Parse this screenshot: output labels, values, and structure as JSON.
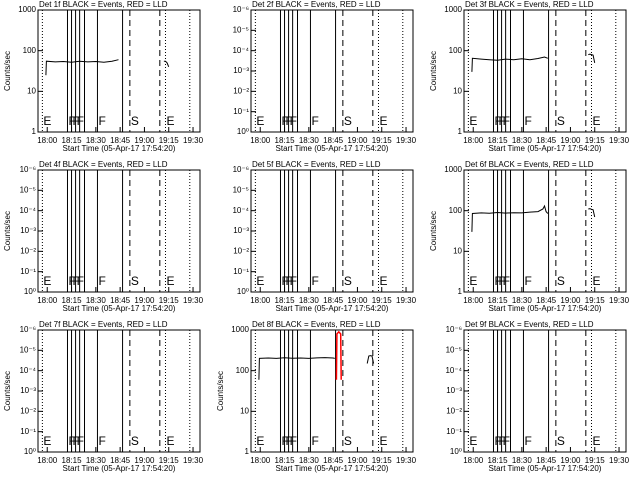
{
  "x_axis": {
    "label": "Start Time (05-Apr-17 17:54:20)",
    "xlim": [
      -5.7,
      94.3
    ],
    "xticks": [
      {
        "value": 0,
        "label": "18:00"
      },
      {
        "value": 15,
        "label": "18:15"
      },
      {
        "value": 30,
        "label": "18:30"
      },
      {
        "value": 45,
        "label": "18:45"
      },
      {
        "value": 60,
        "label": "19:00"
      },
      {
        "value": 75,
        "label": "19:15"
      },
      {
        "value": 90,
        "label": "19:30"
      }
    ]
  },
  "events": [
    {
      "time": -3,
      "label": "E",
      "style": "dotted"
    },
    {
      "time": 12.5,
      "label": "F",
      "style": "solid"
    },
    {
      "time": 15,
      "label": "F",
      "style": "solid"
    },
    {
      "time": 17.5,
      "label": "F",
      "style": "solid"
    },
    {
      "time": 20,
      "style": "solid"
    },
    {
      "time": 23,
      "style": "solid"
    },
    {
      "time": 31,
      "label": "F",
      "style": "solid"
    },
    {
      "time": 46.5,
      "style": "solid"
    },
    {
      "time": 51,
      "label": "S",
      "style": "dashed"
    },
    {
      "time": 69.5,
      "style": "dashed"
    },
    {
      "time": 73,
      "label": "E",
      "style": "dotted"
    },
    {
      "time": 88,
      "style": "dotted"
    }
  ],
  "chart_data": [
    {
      "type": "line",
      "title": "Det 1f BLACK = Events, RED = LLD",
      "ylabel": "Counts/sec",
      "log_y": true,
      "ylim": [
        1,
        1000
      ],
      "yticks": [
        1,
        10,
        100,
        1000
      ],
      "series": [
        {
          "name": "Events",
          "color": "#000000",
          "x": [
            -0.8,
            -0.5,
            5,
            10,
            15,
            20,
            25,
            30,
            35,
            40,
            44,
            45,
            72,
            73,
            74,
            75
          ],
          "values": [
            25,
            55,
            53,
            54,
            52,
            55,
            53,
            54,
            52,
            55,
            60,
            null,
            55,
            55,
            50,
            40
          ]
        }
      ]
    },
    {
      "type": "line",
      "title": "Det 2f BLACK = Events, RED = LLD",
      "log_y": true,
      "ylim": [
        1,
        1e-06
      ],
      "yticks": [
        {
          "value": 1,
          "label": "10⁰"
        },
        {
          "value": 0.1,
          "label": "10⁻¹"
        },
        {
          "value": 0.01,
          "label": "10⁻²"
        },
        {
          "value": 0.001,
          "label": "10⁻³"
        },
        {
          "value": 0.0001,
          "label": "10⁻⁴"
        },
        {
          "value": 1e-05,
          "label": "10⁻⁵"
        },
        {
          "value": 1e-06,
          "label": "10⁻⁶"
        }
      ],
      "series": []
    },
    {
      "type": "line",
      "title": "Det 3f BLACK = Events, RED = LLD",
      "ylabel": "Counts/sec",
      "log_y": true,
      "ylim": [
        1,
        1000
      ],
      "yticks": [
        1,
        10,
        100,
        1000
      ],
      "series": [
        {
          "name": "Events",
          "color": "#000000",
          "x": [
            -0.8,
            -0.5,
            5,
            10,
            15,
            20,
            25,
            30,
            35,
            40,
            44,
            46,
            47,
            71,
            72,
            73,
            74,
            75
          ],
          "values": [
            30,
            65,
            62,
            60,
            58,
            62,
            60,
            63,
            60,
            64,
            70,
            65,
            null,
            80,
            82,
            80,
            78,
            50
          ]
        }
      ]
    },
    {
      "type": "line",
      "title": "Det 4f BLACK = Events, RED = LLD",
      "ylabel": "Counts/sec",
      "log_y": true,
      "ylim": [
        1,
        1e-06
      ],
      "yticks": [
        {
          "value": 1,
          "label": "10⁰"
        },
        {
          "value": 0.1,
          "label": "10⁻¹"
        },
        {
          "value": 0.01,
          "label": "10⁻²"
        },
        {
          "value": 0.001,
          "label": "10⁻³"
        },
        {
          "value": 0.0001,
          "label": "10⁻⁴"
        },
        {
          "value": 1e-05,
          "label": "10⁻⁵"
        },
        {
          "value": 1e-06,
          "label": "10⁻⁶"
        }
      ],
      "series": []
    },
    {
      "type": "line",
      "title": "Det 5f BLACK = Events, RED = LLD",
      "log_y": true,
      "ylim": [
        1,
        1e-06
      ],
      "yticks": [
        {
          "value": 1,
          "label": "10⁰"
        },
        {
          "value": 0.1,
          "label": "10⁻¹"
        },
        {
          "value": 0.01,
          "label": "10⁻²"
        },
        {
          "value": 0.001,
          "label": "10⁻³"
        },
        {
          "value": 0.0001,
          "label": "10⁻⁴"
        },
        {
          "value": 1e-05,
          "label": "10⁻⁵"
        },
        {
          "value": 1e-06,
          "label": "10⁻⁶"
        }
      ],
      "series": []
    },
    {
      "type": "line",
      "title": "Det 6f BLACK = Events, RED = LLD",
      "ylabel": "Counts/sec",
      "log_y": true,
      "ylim": [
        1,
        1000
      ],
      "yticks": [
        1,
        10,
        100,
        1000
      ],
      "series": [
        {
          "name": "Events",
          "color": "#000000",
          "x": [
            -0.8,
            -0.5,
            5,
            10,
            15,
            20,
            25,
            30,
            35,
            40,
            43,
            44,
            45,
            46,
            47,
            71,
            72,
            73,
            74,
            75
          ],
          "values": [
            30,
            85,
            88,
            86,
            90,
            87,
            89,
            88,
            92,
            95,
            110,
            130,
            95,
            85,
            null,
            110,
            112,
            108,
            105,
            70
          ]
        }
      ]
    },
    {
      "type": "line",
      "title": "Det 7f BLACK = Events, RED = LLD",
      "ylabel": "Counts/sec",
      "log_y": true,
      "ylim": [
        1,
        1e-06
      ],
      "yticks": [
        {
          "value": 1,
          "label": "10⁰"
        },
        {
          "value": 0.1,
          "label": "10⁻¹"
        },
        {
          "value": 0.01,
          "label": "10⁻²"
        },
        {
          "value": 0.001,
          "label": "10⁻³"
        },
        {
          "value": 0.0001,
          "label": "10⁻⁴"
        },
        {
          "value": 1e-05,
          "label": "10⁻⁵"
        },
        {
          "value": 1e-06,
          "label": "10⁻⁶"
        }
      ],
      "series": []
    },
    {
      "type": "line",
      "title": "Det 8f BLACK = Events, RED = LLD",
      "ylabel": "Counts/sec",
      "log_y": true,
      "ylim": [
        1,
        1000
      ],
      "yticks": [
        1,
        10,
        100,
        1000
      ],
      "series": [
        {
          "name": "Events",
          "color": "#000000",
          "x": [
            -0.8,
            -0.5,
            5,
            10,
            15,
            20,
            25,
            30,
            35,
            40,
            45,
            46,
            47,
            66,
            67,
            68,
            69,
            70
          ],
          "values": [
            60,
            200,
            205,
            200,
            208,
            202,
            205,
            200,
            206,
            210,
            205,
            200,
            null,
            150,
            230,
            235,
            230,
            150
          ]
        },
        {
          "name": "LLD",
          "color": "#ff0000",
          "x": [
            47,
            47.3,
            48.5,
            49.7,
            50
          ],
          "values": [
            60,
            800,
            900,
            800,
            60
          ]
        }
      ]
    },
    {
      "type": "line",
      "title": "Det 9f BLACK = Events, RED = LLD",
      "log_y": true,
      "ylim": [
        1,
        1e-06
      ],
      "yticks": [
        {
          "value": 1,
          "label": "10⁰"
        },
        {
          "value": 0.1,
          "label": "10⁻¹"
        },
        {
          "value": 0.01,
          "label": "10⁻²"
        },
        {
          "value": 0.001,
          "label": "10⁻³"
        },
        {
          "value": 0.0001,
          "label": "10⁻⁴"
        },
        {
          "value": 1e-05,
          "label": "10⁻⁵"
        },
        {
          "value": 1e-06,
          "label": "10⁻⁶"
        }
      ],
      "series": []
    }
  ]
}
